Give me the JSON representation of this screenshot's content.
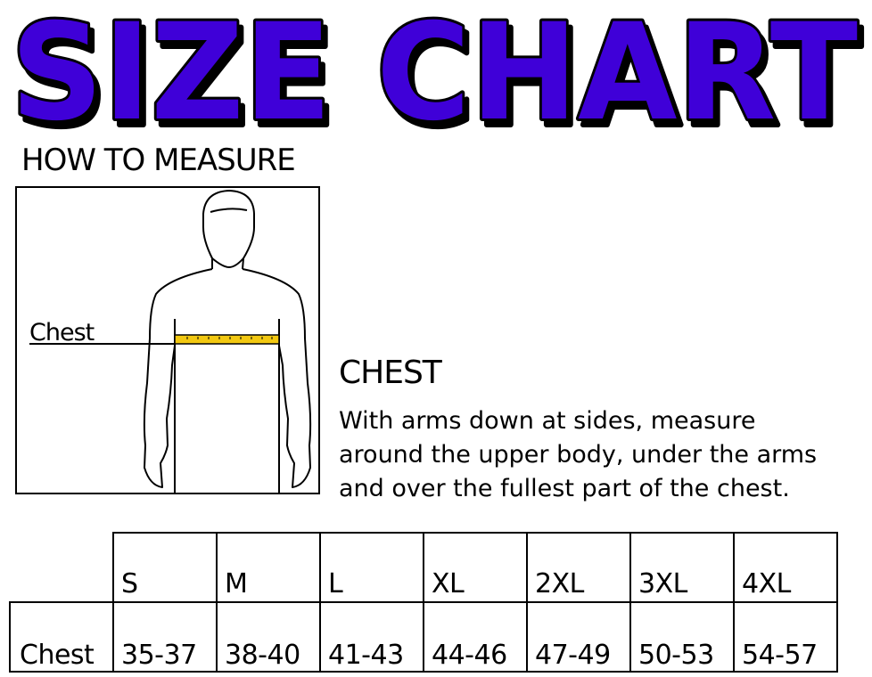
{
  "title": "SIZE CHART",
  "title_color": "#3f00d8",
  "how_to_measure": "HOW TO MEASURE",
  "figure": {
    "chest_label": "Chest",
    "tape_color": "#f2c811"
  },
  "instruction": {
    "heading": "CHEST",
    "lines": [
      "With arms down at sides, measure",
      "around the upper body, under the arms",
      "and over the fullest part of the chest."
    ]
  },
  "table": {
    "sizes": [
      "S",
      "M",
      "L",
      "XL",
      "2XL",
      "3XL",
      "4XL"
    ],
    "rows": [
      {
        "label": "Chest",
        "values": [
          "35-37",
          "38-40",
          "41-43",
          "44-46",
          "47-49",
          "50-53",
          "54-57"
        ]
      }
    ]
  }
}
